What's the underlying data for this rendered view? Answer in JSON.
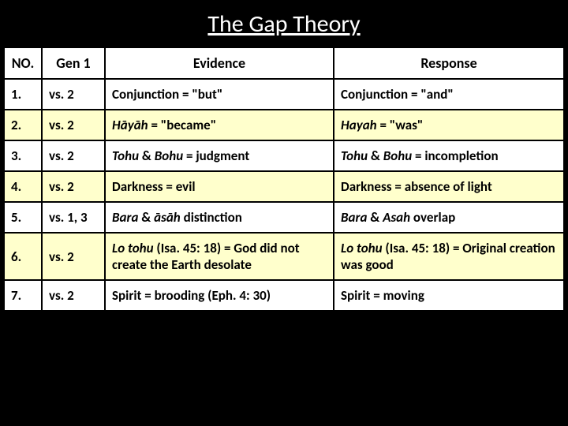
{
  "title": "The Gap Theory",
  "headers": {
    "no": "NO.",
    "gen": "Gen 1",
    "evidence": "Evidence",
    "response": "Response"
  },
  "rows": [
    {
      "no": "1.",
      "gen": "vs. 2",
      "evidence_html": "Conjunction = \"but\"",
      "response_html": "Conjunction = \"and\"",
      "highlight": false
    },
    {
      "no": "2.",
      "gen": "vs. 2",
      "evidence_html": "<span class='italic'>Hāyāh</span> = \"became\"",
      "response_html": "<span class='italic'>Hayah</span> = \"was\"",
      "highlight": true
    },
    {
      "no": "3.",
      "gen": "vs. 2",
      "evidence_html": "<span class='italic'>Tohu</span> & <span class='italic'>Bohu</span> = judgment",
      "response_html": "<span class='italic'>Tohu</span> & <span class='italic'>Bohu</span> = incompletion",
      "highlight": false
    },
    {
      "no": "4.",
      "gen": "vs. 2",
      "evidence_html": "Darkness = evil",
      "response_html": "Darkness = absence of light",
      "highlight": true
    },
    {
      "no": "5.",
      "gen": "vs. 1, 3",
      "evidence_html": "<span class='italic'>Bara</span> & <span class='italic'>āsāh</span> distinction",
      "response_html": "<span class='italic'>Bara</span> & <span class='italic'>Asah</span> overlap",
      "highlight": false
    },
    {
      "no": "6.",
      "gen": "vs. 2",
      "evidence_html": "<span class='italic'>Lo tohu</span> (Isa. 45: 18) = God did not create the Earth desolate",
      "response_html": "<span class='italic'>Lo tohu</span> (Isa. 45: 18) = Original creation was good",
      "highlight": true
    },
    {
      "no": "7.",
      "gen": "vs. 2",
      "evidence_html": "Spirit = brooding (Eph. 4: 30)",
      "response_html": "Spirit = moving",
      "highlight": false
    }
  ]
}
